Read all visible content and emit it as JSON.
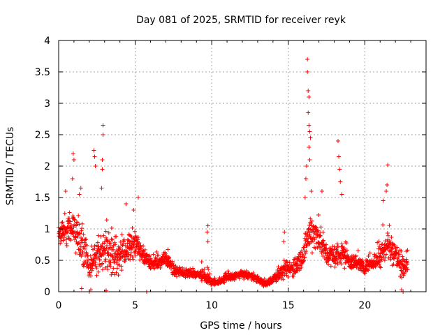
{
  "chart_data": {
    "type": "scatter",
    "title": "Day 081 of 2025, SRMTID for receiver reyk",
    "xlabel": "GPS time / hours",
    "ylabel": "SRMTID / TECUs",
    "xlim": [
      0,
      24
    ],
    "ylim": [
      0,
      4
    ],
    "x_ticks": [
      "0",
      "5",
      "10",
      "15",
      "20"
    ],
    "y_ticks": [
      "0",
      "0.5",
      "1",
      "1.5",
      "2",
      "2.5",
      "3",
      "3.5",
      "4"
    ],
    "x_tick_values": [
      0,
      5,
      10,
      15,
      20
    ],
    "y_tick_values": [
      0,
      0.5,
      1,
      1.5,
      2,
      2.5,
      3,
      3.5,
      4
    ],
    "grid": true,
    "marker": "plus",
    "colors": {
      "series": "#ff0000",
      "grid": "#a0a0a0",
      "axis": "#000000"
    },
    "series": [
      {
        "name": "reyk",
        "x_range": [
          0,
          22.8
        ],
        "coverage_note": "dense sampled trace, approx 30 s cadence",
        "envelope_hours": [
          0,
          0.5,
          1,
          1.5,
          2,
          2.5,
          3,
          3.5,
          4,
          4.5,
          5,
          5.5,
          6,
          6.5,
          7,
          7.5,
          8,
          8.5,
          9,
          9.5,
          10,
          10.5,
          11,
          11.5,
          12,
          12.5,
          13,
          13.5,
          14,
          14.5,
          15,
          15.5,
          16,
          16.5,
          17,
          17.5,
          18,
          18.5,
          19,
          19.5,
          20,
          20.5,
          21,
          21.5,
          22,
          22.5,
          22.8
        ],
        "envelope_median": [
          0.9,
          1.0,
          1.05,
          0.75,
          0.4,
          0.55,
          0.7,
          0.6,
          0.55,
          0.7,
          0.75,
          0.6,
          0.45,
          0.45,
          0.55,
          0.35,
          0.3,
          0.3,
          0.28,
          0.25,
          0.15,
          0.15,
          0.22,
          0.25,
          0.28,
          0.25,
          0.2,
          0.12,
          0.2,
          0.3,
          0.35,
          0.4,
          0.6,
          1.0,
          0.85,
          0.6,
          0.55,
          0.6,
          0.5,
          0.45,
          0.4,
          0.45,
          0.6,
          0.75,
          0.6,
          0.35,
          0.5
        ],
        "envelope_spread": [
          0.35,
          0.35,
          0.4,
          0.5,
          0.35,
          0.4,
          0.5,
          0.45,
          0.4,
          0.35,
          0.3,
          0.2,
          0.15,
          0.15,
          0.15,
          0.12,
          0.1,
          0.1,
          0.1,
          0.12,
          0.06,
          0.06,
          0.08,
          0.08,
          0.08,
          0.08,
          0.08,
          0.06,
          0.1,
          0.15,
          0.18,
          0.2,
          0.3,
          0.45,
          0.35,
          0.25,
          0.25,
          0.25,
          0.2,
          0.15,
          0.15,
          0.15,
          0.3,
          0.35,
          0.3,
          0.25,
          0.3
        ],
        "notable_points": [
          {
            "x": 0.95,
            "y": 2.2
          },
          {
            "x": 1.0,
            "y": 2.1
          },
          {
            "x": 0.9,
            "y": 1.8
          },
          {
            "x": 0.45,
            "y": 1.6
          },
          {
            "x": 2.3,
            "y": 2.25
          },
          {
            "x": 2.35,
            "y": 2.15
          },
          {
            "x": 2.4,
            "y": 2.0
          },
          {
            "x": 2.9,
            "y": 2.65
          },
          {
            "x": 2.9,
            "y": 2.5
          },
          {
            "x": 2.85,
            "y": 2.1
          },
          {
            "x": 2.85,
            "y": 1.95
          },
          {
            "x": 2.8,
            "y": 1.65
          },
          {
            "x": 1.45,
            "y": 1.65
          },
          {
            "x": 1.35,
            "y": 1.55
          },
          {
            "x": 5.2,
            "y": 1.5
          },
          {
            "x": 4.9,
            "y": 1.3
          },
          {
            "x": 4.4,
            "y": 1.4
          },
          {
            "x": 9.75,
            "y": 1.05
          },
          {
            "x": 9.7,
            "y": 0.95
          },
          {
            "x": 9.75,
            "y": 0.8
          },
          {
            "x": 14.75,
            "y": 0.95
          },
          {
            "x": 14.7,
            "y": 0.8
          },
          {
            "x": 16.25,
            "y": 3.7
          },
          {
            "x": 16.25,
            "y": 3.5
          },
          {
            "x": 16.3,
            "y": 3.2
          },
          {
            "x": 16.35,
            "y": 3.1
          },
          {
            "x": 16.3,
            "y": 2.85
          },
          {
            "x": 16.35,
            "y": 2.65
          },
          {
            "x": 16.4,
            "y": 2.55
          },
          {
            "x": 16.45,
            "y": 2.45
          },
          {
            "x": 16.35,
            "y": 2.3
          },
          {
            "x": 16.4,
            "y": 2.1
          },
          {
            "x": 16.2,
            "y": 2.0
          },
          {
            "x": 16.15,
            "y": 1.8
          },
          {
            "x": 16.5,
            "y": 1.6
          },
          {
            "x": 16.1,
            "y": 1.5
          },
          {
            "x": 18.25,
            "y": 2.4
          },
          {
            "x": 18.3,
            "y": 2.15
          },
          {
            "x": 18.35,
            "y": 1.95
          },
          {
            "x": 18.4,
            "y": 1.75
          },
          {
            "x": 18.5,
            "y": 1.55
          },
          {
            "x": 17.2,
            "y": 1.6
          },
          {
            "x": 21.5,
            "y": 2.02
          },
          {
            "x": 21.45,
            "y": 1.7
          },
          {
            "x": 21.4,
            "y": 1.6
          },
          {
            "x": 21.2,
            "y": 1.45
          },
          {
            "x": 22.5,
            "y": 0.0
          },
          {
            "x": 22.4,
            "y": 0.03
          },
          {
            "x": 2.0,
            "y": 0.0
          },
          {
            "x": 2.1,
            "y": 0.03
          },
          {
            "x": 5.75,
            "y": 0.0
          },
          {
            "x": 3.1,
            "y": 0.02
          },
          {
            "x": 1.5,
            "y": 0.05
          }
        ]
      }
    ]
  }
}
